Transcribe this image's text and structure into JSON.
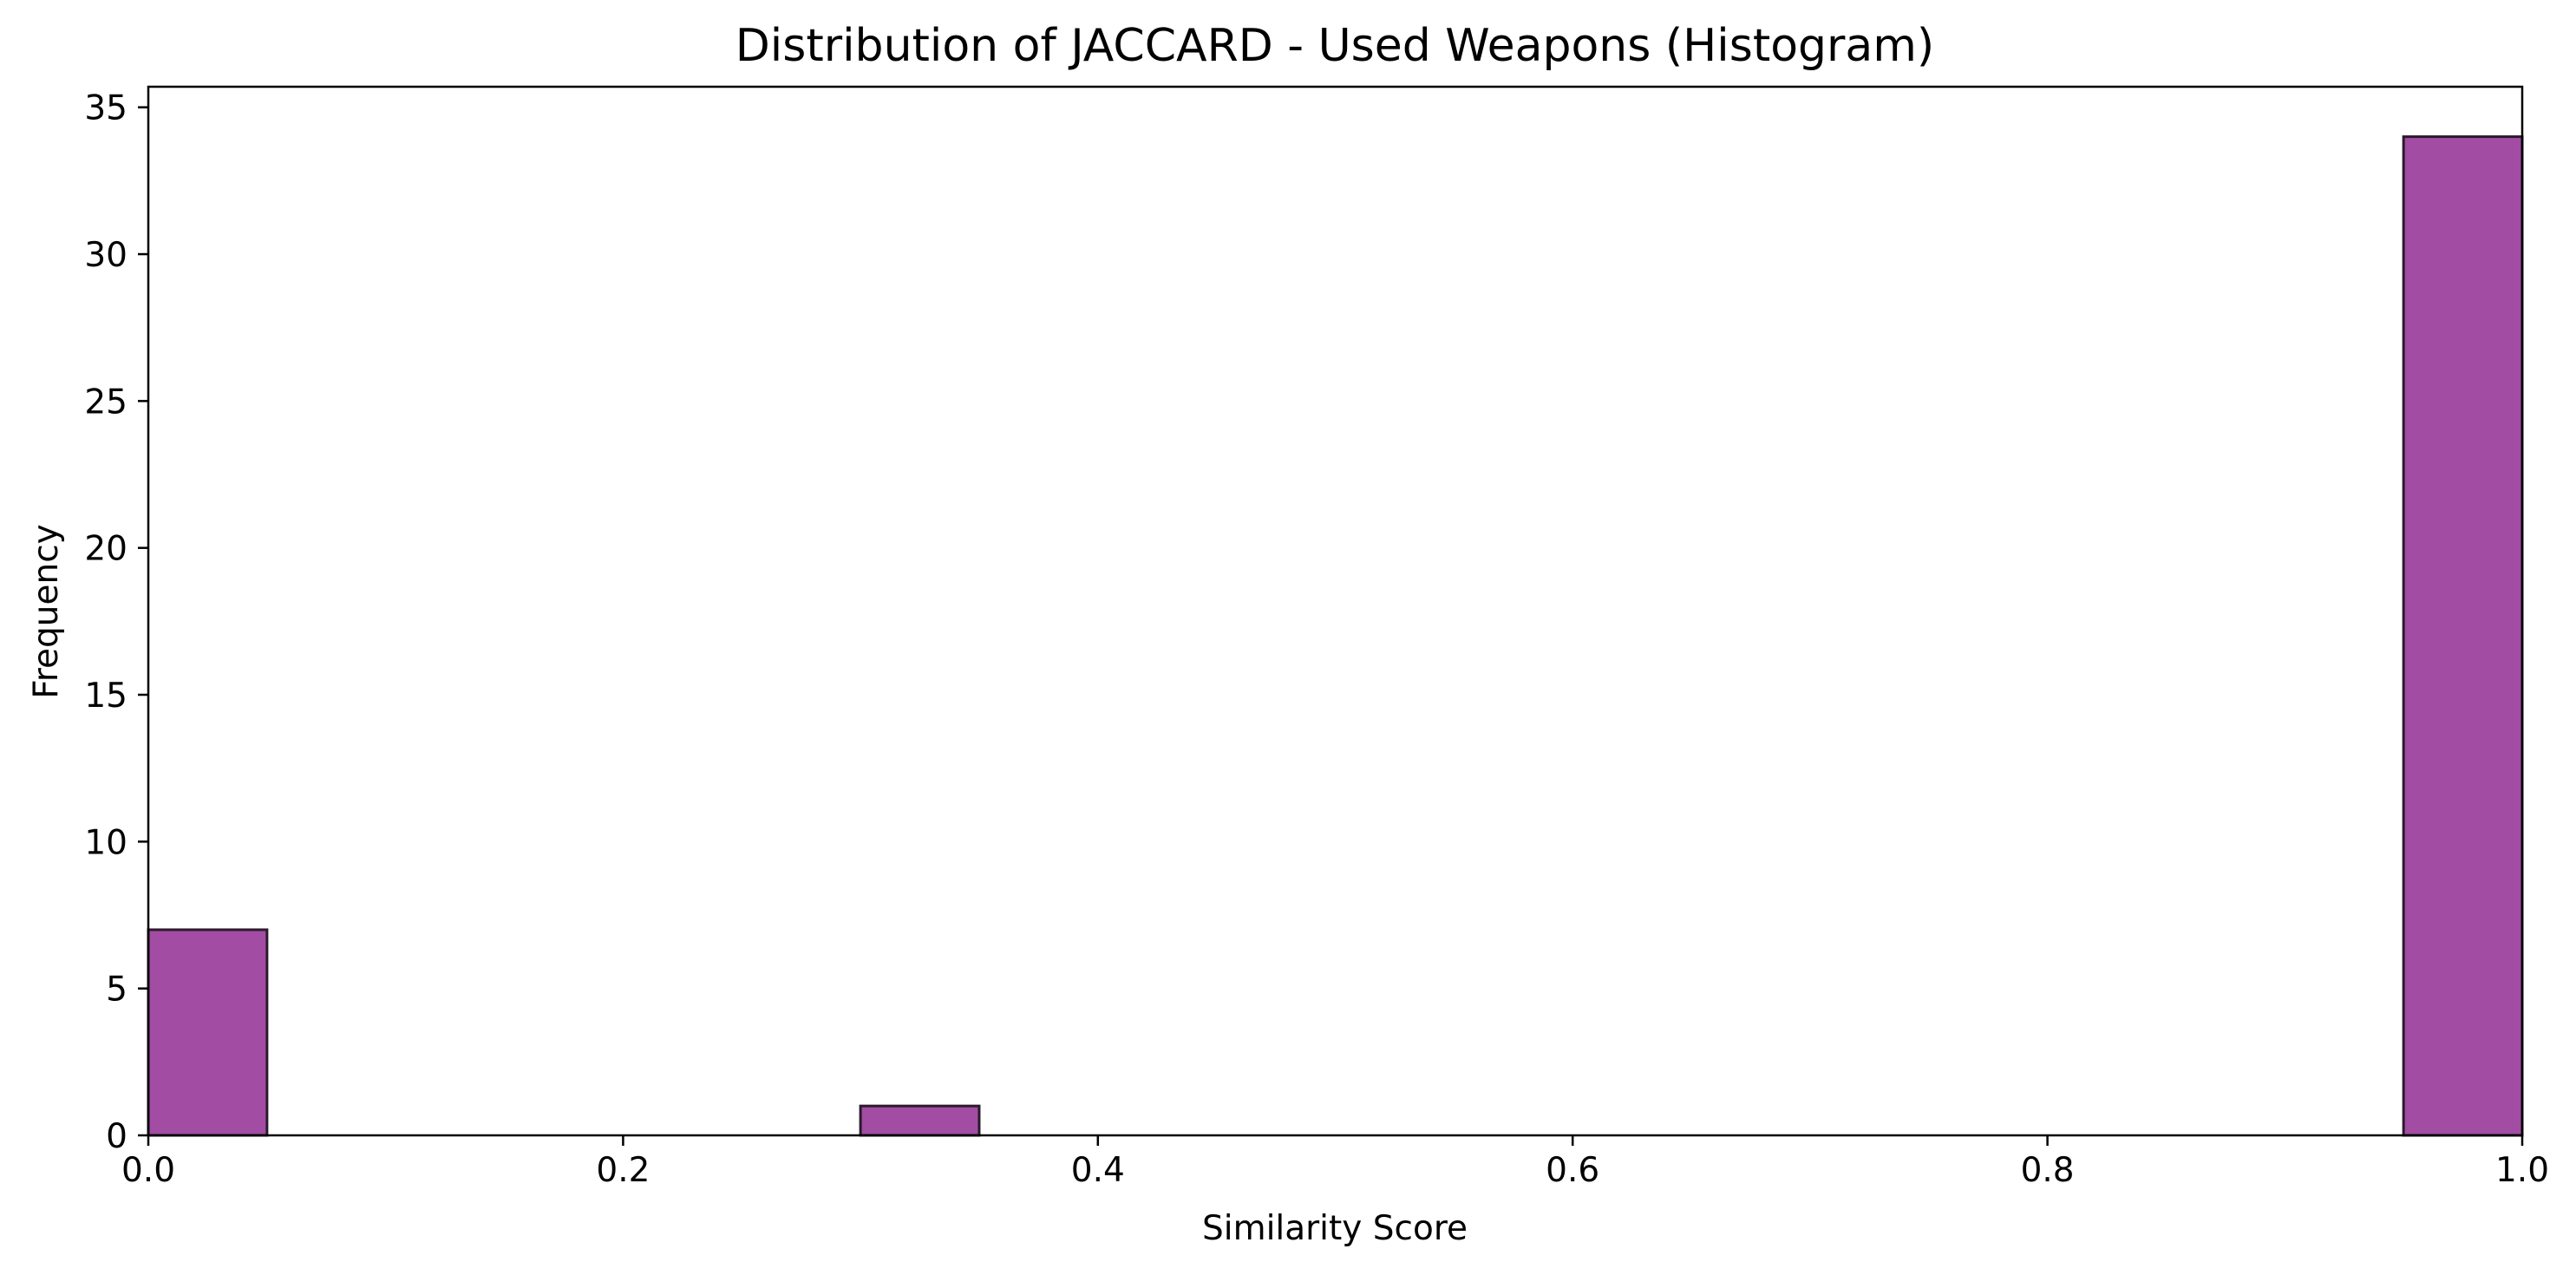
{
  "chart_data": {
    "type": "bar",
    "title": "Distribution of JACCARD - Used Weapons (Histogram)",
    "xlabel": "Similarity Score",
    "ylabel": "Frequency",
    "xlim": [
      0.0,
      1.0
    ],
    "ylim": [
      0,
      35.7
    ],
    "x_ticks": [
      "0.0",
      "0.2",
      "0.4",
      "0.6",
      "0.8",
      "1.0"
    ],
    "y_ticks": [
      "0",
      "5",
      "10",
      "15",
      "20",
      "25",
      "30",
      "35"
    ],
    "bins": [
      {
        "start": 0.0,
        "end": 0.05,
        "count": 7
      },
      {
        "start": 0.3,
        "end": 0.35,
        "count": 1
      },
      {
        "start": 0.95,
        "end": 1.0,
        "count": 34
      }
    ],
    "bar_color": "#a24ca4",
    "edge_color": "#2b1a2b",
    "grid": false,
    "legend": "none"
  }
}
